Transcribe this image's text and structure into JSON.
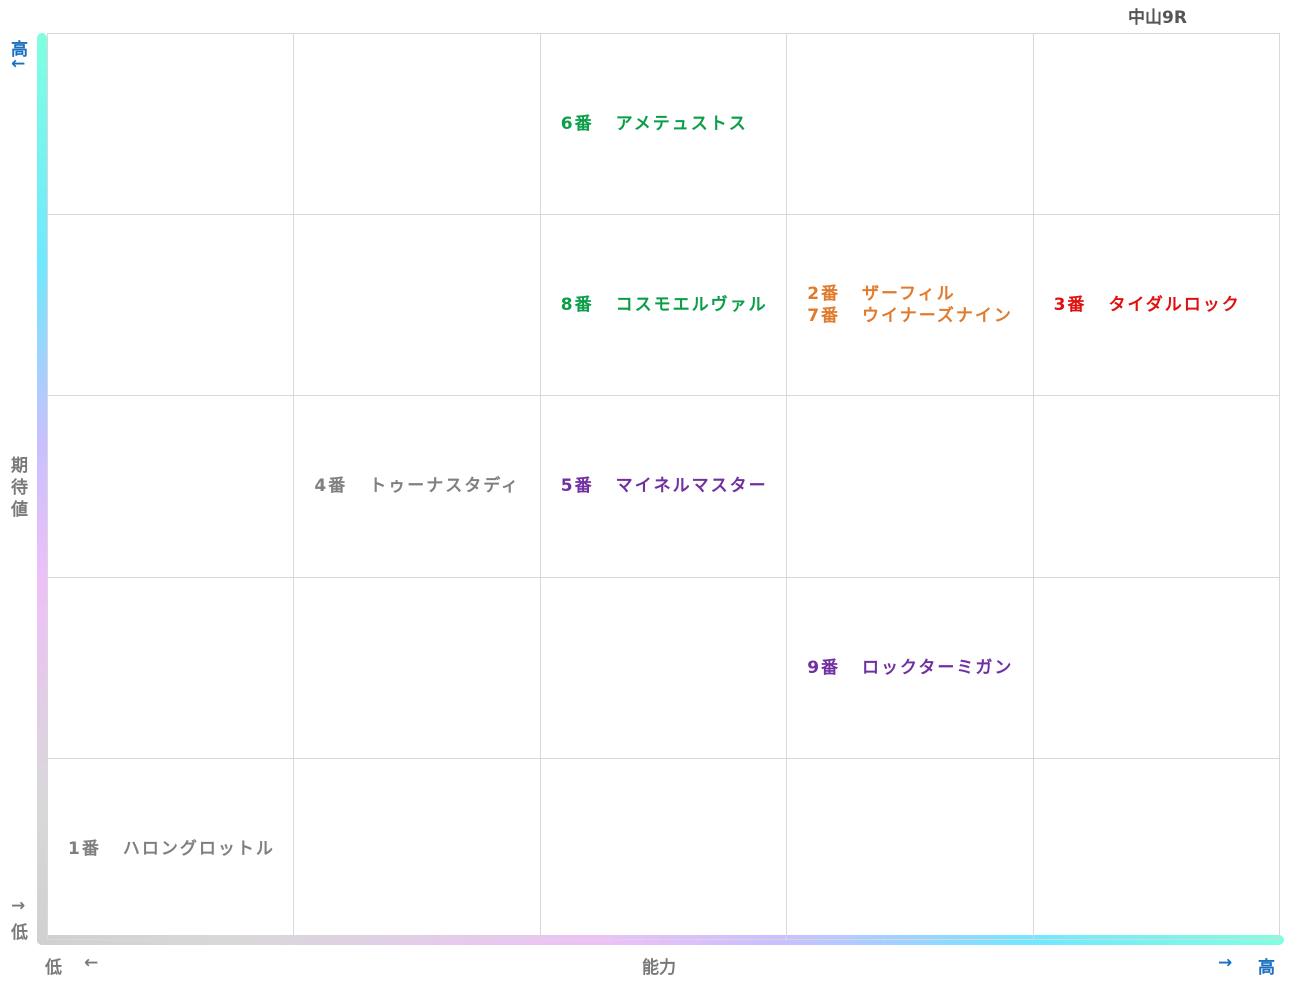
{
  "header": {
    "title": "中山9R"
  },
  "axes": {
    "y": {
      "label": "期待値",
      "high": "高",
      "high_arrow": "←",
      "low": "低",
      "low_arrow": "→"
    },
    "x": {
      "label": "能力",
      "low": "低",
      "low_arrow": "←",
      "high": "高",
      "high_arrow": "→"
    }
  },
  "grid": {
    "rows": [
      [
        [],
        [],
        [
          {
            "label": "6番",
            "name": "アメテュストス",
            "color": "#0a9e48"
          }
        ],
        [],
        []
      ],
      [
        [],
        [],
        [
          {
            "label": "8番",
            "name": "コスモエルヴァル",
            "color": "#0a9e48"
          }
        ],
        [
          {
            "label": "2番",
            "name": "ザーフィル",
            "color": "#e07a2c"
          },
          {
            "label": "7番",
            "name": "ウイナーズナイン",
            "color": "#e07a2c"
          }
        ],
        [
          {
            "label": "3番",
            "name": "タイダルロック",
            "color": "#e01010"
          }
        ]
      ],
      [
        [],
        [
          {
            "label": "4番",
            "name": "トゥーナスタディ",
            "color": "#808080"
          }
        ],
        [
          {
            "label": "5番",
            "name": "マイネルマスター",
            "color": "#7030a0"
          }
        ],
        [],
        []
      ],
      [
        [],
        [],
        [],
        [
          {
            "label": "9番",
            "name": "ロックターミガン",
            "color": "#7030a0"
          }
        ],
        []
      ],
      [
        [
          {
            "label": "1番",
            "name": "ハロングロットル",
            "color": "#808080"
          }
        ],
        [],
        [],
        [],
        []
      ]
    ]
  }
}
